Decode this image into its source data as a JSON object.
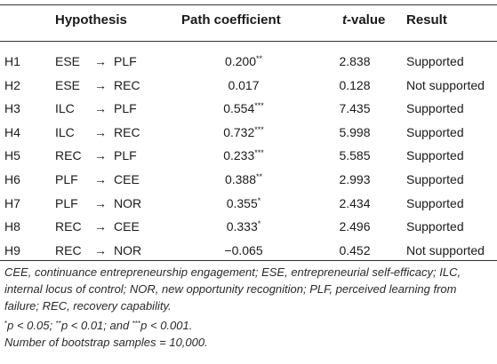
{
  "table": {
    "headers": {
      "id": "",
      "hypothesis": "Hypothesis",
      "path_coefficient": "Path coefficient",
      "t_value_prefix": "t",
      "t_value_suffix": "-value",
      "result": "Result"
    },
    "rows": [
      {
        "id": "H1",
        "from": "ESE",
        "arrow": "→",
        "to": "PLF",
        "coef": "0.200",
        "stars": "**",
        "t": "2.838",
        "result": "Supported"
      },
      {
        "id": "H2",
        "from": "ESE",
        "arrow": "→",
        "to": "REC",
        "coef": "0.017",
        "stars": "",
        "t": "0.128",
        "result": "Not supported"
      },
      {
        "id": "H3",
        "from": "ILC",
        "arrow": "→",
        "to": "PLF",
        "coef": "0.554",
        "stars": "***",
        "t": "7.435",
        "result": "Supported"
      },
      {
        "id": "H4",
        "from": "ILC",
        "arrow": "→",
        "to": "REC",
        "coef": "0.732",
        "stars": "***",
        "t": "5.998",
        "result": "Supported"
      },
      {
        "id": "H5",
        "from": "REC",
        "arrow": "→",
        "to": "PLF",
        "coef": "0.233",
        "stars": "***",
        "t": "5.585",
        "result": "Supported"
      },
      {
        "id": "H6",
        "from": "PLF",
        "arrow": "→",
        "to": "CEE",
        "coef": "0.388",
        "stars": "**",
        "t": "2.993",
        "result": "Supported"
      },
      {
        "id": "H7",
        "from": "PLF",
        "arrow": "→",
        "to": "NOR",
        "coef": "0.355",
        "stars": "*",
        "t": "2.434",
        "result": "Supported"
      },
      {
        "id": "H8",
        "from": "REC",
        "arrow": "→",
        "to": "CEE",
        "coef": "0.333",
        "stars": "*",
        "t": "2.496",
        "result": "Supported"
      },
      {
        "id": "H9",
        "from": "REC",
        "arrow": "→",
        "to": "NOR",
        "coef": "−0.065",
        "stars": "",
        "t": "0.452",
        "result": "Not supported"
      }
    ]
  },
  "footnotes": {
    "abbreviations": "CEE, continuance entrepreneurship engagement; ESE, entrepreneurial self-efficacy; ILC, internal locus of control; NOR, new opportunity recognition; PLF, perceived learning from failure; REC, recovery capability.",
    "sig_1_mark": "*",
    "sig_1_text": "p < 0.05; ",
    "sig_2_mark": "**",
    "sig_2_text": "p < 0.01; and ",
    "sig_3_mark": "***",
    "sig_3_text": "p < 0.001.",
    "bootstrap": "Number of bootstrap samples = 10,000."
  }
}
